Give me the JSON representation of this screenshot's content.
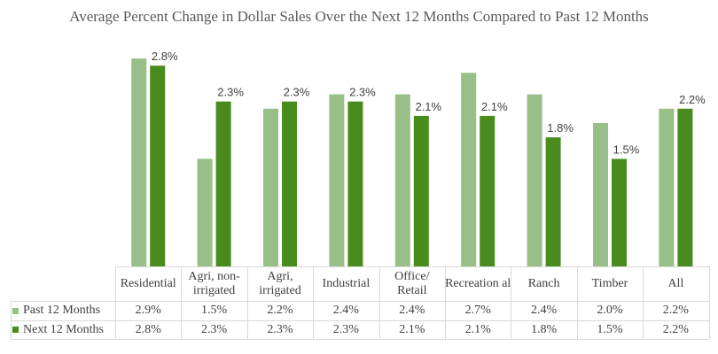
{
  "chart_data": {
    "type": "bar",
    "title": "Average Percent Change in Dollar Sales Over the Next 12 Months Compared to Past 12 Months",
    "categories": [
      "Residential",
      "Agri, non-irrigated",
      "Agri, irrigated",
      "Industrial",
      "Office/ Retail",
      "Recreation al",
      "Ranch",
      "Timber",
      "All"
    ],
    "series": [
      {
        "name": "Past 12 Months",
        "color": "#97bf87",
        "values": [
          2.9,
          1.5,
          2.2,
          2.4,
          2.4,
          2.7,
          2.4,
          2.0,
          2.2
        ],
        "labels": [
          "2.9%",
          "1.5%",
          "2.2%",
          "2.4%",
          "2.4%",
          "2.7%",
          "2.4%",
          "2.0%",
          "2.2%"
        ]
      },
      {
        "name": "Next 12 Months",
        "color": "#4a8b1e",
        "values": [
          2.8,
          2.3,
          2.3,
          2.3,
          2.1,
          2.1,
          1.8,
          1.5,
          2.2
        ],
        "labels": [
          "2.8%",
          "2.3%",
          "2.3%",
          "2.3%",
          "2.1%",
          "2.1%",
          "1.8%",
          "1.5%",
          "2.2%"
        ]
      }
    ],
    "ylim": [
      0,
      3.0
    ],
    "grid": false,
    "legend": "data-table",
    "data_labels_series": "Next 12 Months"
  }
}
